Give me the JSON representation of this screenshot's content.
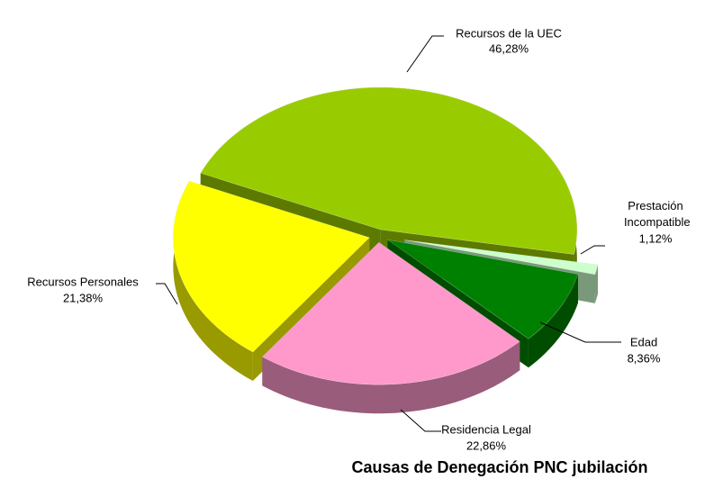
{
  "chart_data": {
    "type": "pie",
    "title": "Causas de Denegación PNC jubilación",
    "categories": [
      "Recursos de la UEC",
      "Prestación Incompatible",
      "Edad",
      "Residencia Legal",
      "Recursos Personales"
    ],
    "values": [
      46.28,
      1.12,
      8.36,
      22.86,
      21.38
    ],
    "value_labels": [
      "46,28%",
      "1,12%",
      "8,36%",
      "22,86%",
      "21,38%"
    ],
    "colors": [
      "#99cc00",
      "#ccffcc",
      "#008000",
      "#ff99cc",
      "#ffff00"
    ]
  }
}
